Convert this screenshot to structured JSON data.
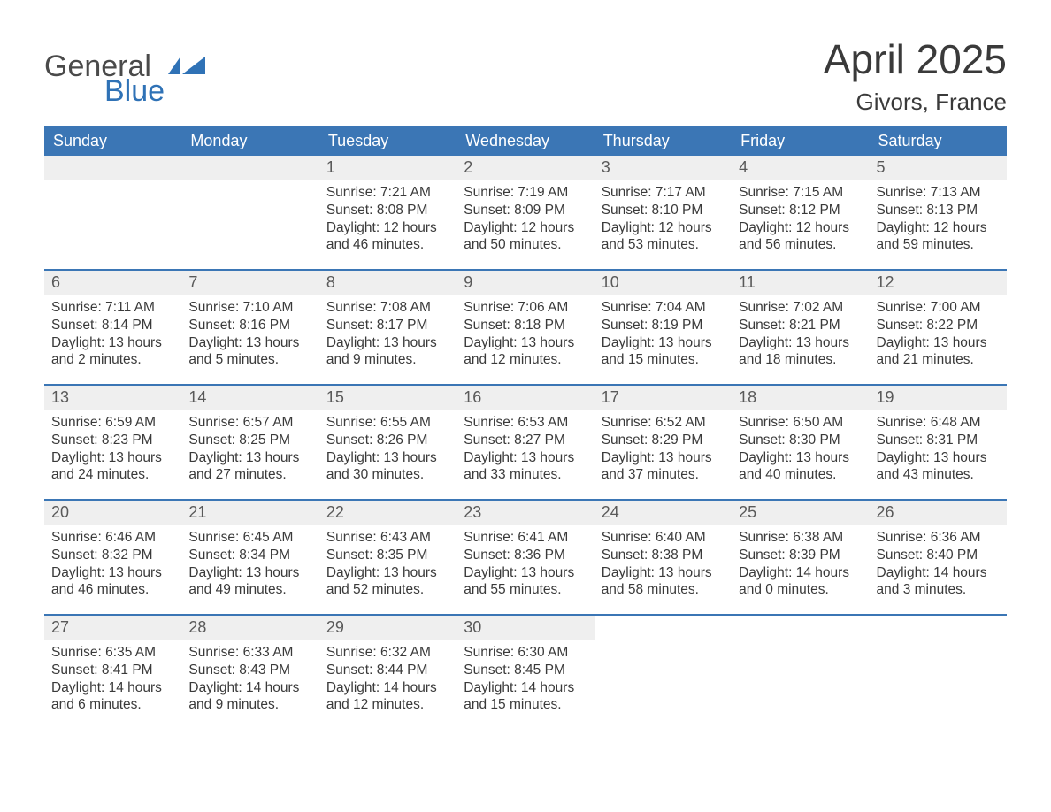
{
  "logo": {
    "word1": "General",
    "word2": "Blue"
  },
  "title": "April 2025",
  "location": "Givors, France",
  "colors": {
    "header_bg": "#3b76b5",
    "header_text": "#ffffff",
    "daynum_bg": "#efefef",
    "daynum_text": "#595959",
    "body_text": "#3a3a3a",
    "logo_gray": "#4a4a4a",
    "logo_blue": "#2f72b6",
    "row_border": "#3b76b5",
    "page_bg": "#ffffff"
  },
  "weekdays": [
    "Sunday",
    "Monday",
    "Tuesday",
    "Wednesday",
    "Thursday",
    "Friday",
    "Saturday"
  ],
  "labels": {
    "sunrise": "Sunrise: ",
    "sunset": "Sunset: ",
    "daylight": "Daylight: "
  },
  "weeks": [
    [
      null,
      null,
      {
        "n": "1",
        "sr": "7:21 AM",
        "ss": "8:08 PM",
        "dl": "12 hours and 46 minutes."
      },
      {
        "n": "2",
        "sr": "7:19 AM",
        "ss": "8:09 PM",
        "dl": "12 hours and 50 minutes."
      },
      {
        "n": "3",
        "sr": "7:17 AM",
        "ss": "8:10 PM",
        "dl": "12 hours and 53 minutes."
      },
      {
        "n": "4",
        "sr": "7:15 AM",
        "ss": "8:12 PM",
        "dl": "12 hours and 56 minutes."
      },
      {
        "n": "5",
        "sr": "7:13 AM",
        "ss": "8:13 PM",
        "dl": "12 hours and 59 minutes."
      }
    ],
    [
      {
        "n": "6",
        "sr": "7:11 AM",
        "ss": "8:14 PM",
        "dl": "13 hours and 2 minutes."
      },
      {
        "n": "7",
        "sr": "7:10 AM",
        "ss": "8:16 PM",
        "dl": "13 hours and 5 minutes."
      },
      {
        "n": "8",
        "sr": "7:08 AM",
        "ss": "8:17 PM",
        "dl": "13 hours and 9 minutes."
      },
      {
        "n": "9",
        "sr": "7:06 AM",
        "ss": "8:18 PM",
        "dl": "13 hours and 12 minutes."
      },
      {
        "n": "10",
        "sr": "7:04 AM",
        "ss": "8:19 PM",
        "dl": "13 hours and 15 minutes."
      },
      {
        "n": "11",
        "sr": "7:02 AM",
        "ss": "8:21 PM",
        "dl": "13 hours and 18 minutes."
      },
      {
        "n": "12",
        "sr": "7:00 AM",
        "ss": "8:22 PM",
        "dl": "13 hours and 21 minutes."
      }
    ],
    [
      {
        "n": "13",
        "sr": "6:59 AM",
        "ss": "8:23 PM",
        "dl": "13 hours and 24 minutes."
      },
      {
        "n": "14",
        "sr": "6:57 AM",
        "ss": "8:25 PM",
        "dl": "13 hours and 27 minutes."
      },
      {
        "n": "15",
        "sr": "6:55 AM",
        "ss": "8:26 PM",
        "dl": "13 hours and 30 minutes."
      },
      {
        "n": "16",
        "sr": "6:53 AM",
        "ss": "8:27 PM",
        "dl": "13 hours and 33 minutes."
      },
      {
        "n": "17",
        "sr": "6:52 AM",
        "ss": "8:29 PM",
        "dl": "13 hours and 37 minutes."
      },
      {
        "n": "18",
        "sr": "6:50 AM",
        "ss": "8:30 PM",
        "dl": "13 hours and 40 minutes."
      },
      {
        "n": "19",
        "sr": "6:48 AM",
        "ss": "8:31 PM",
        "dl": "13 hours and 43 minutes."
      }
    ],
    [
      {
        "n": "20",
        "sr": "6:46 AM",
        "ss": "8:32 PM",
        "dl": "13 hours and 46 minutes."
      },
      {
        "n": "21",
        "sr": "6:45 AM",
        "ss": "8:34 PM",
        "dl": "13 hours and 49 minutes."
      },
      {
        "n": "22",
        "sr": "6:43 AM",
        "ss": "8:35 PM",
        "dl": "13 hours and 52 minutes."
      },
      {
        "n": "23",
        "sr": "6:41 AM",
        "ss": "8:36 PM",
        "dl": "13 hours and 55 minutes."
      },
      {
        "n": "24",
        "sr": "6:40 AM",
        "ss": "8:38 PM",
        "dl": "13 hours and 58 minutes."
      },
      {
        "n": "25",
        "sr": "6:38 AM",
        "ss": "8:39 PM",
        "dl": "14 hours and 0 minutes."
      },
      {
        "n": "26",
        "sr": "6:36 AM",
        "ss": "8:40 PM",
        "dl": "14 hours and 3 minutes."
      }
    ],
    [
      {
        "n": "27",
        "sr": "6:35 AM",
        "ss": "8:41 PM",
        "dl": "14 hours and 6 minutes."
      },
      {
        "n": "28",
        "sr": "6:33 AM",
        "ss": "8:43 PM",
        "dl": "14 hours and 9 minutes."
      },
      {
        "n": "29",
        "sr": "6:32 AM",
        "ss": "8:44 PM",
        "dl": "14 hours and 12 minutes."
      },
      {
        "n": "30",
        "sr": "6:30 AM",
        "ss": "8:45 PM",
        "dl": "14 hours and 15 minutes."
      },
      null,
      null,
      null
    ]
  ]
}
